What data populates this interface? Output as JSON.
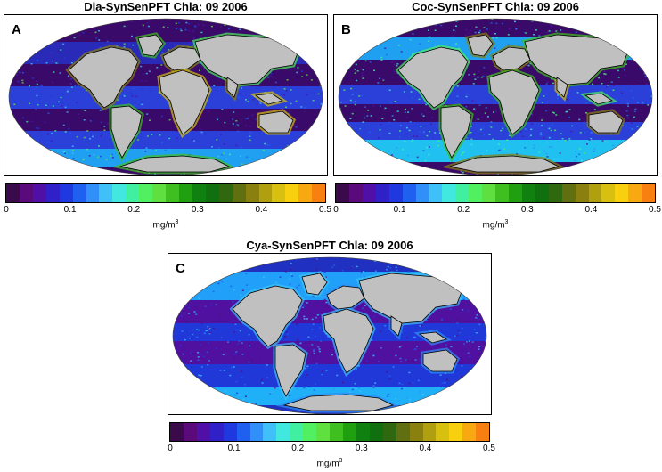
{
  "panels": [
    {
      "id": "A",
      "title": "Dia-SynSenPFT Chla: 09 2006",
      "letter": "A"
    },
    {
      "id": "B",
      "title": "Coc-SynSenPFT Chla: 09 2006",
      "letter": "B"
    },
    {
      "id": "C",
      "title": "Cya-SynSenPFT Chla: 09 2006",
      "letter": "C"
    }
  ],
  "colorbar": {
    "ticks": [
      "0",
      "0.1",
      "0.2",
      "0.3",
      "0.4",
      "0.5"
    ],
    "tick_values": [
      0,
      0.1,
      0.2,
      0.3,
      0.4,
      0.5
    ],
    "range": [
      0,
      0.5
    ],
    "unit_base": "mg/m",
    "unit_exp": "3",
    "colors": [
      "#3a0a4a",
      "#5a0a7a",
      "#5010a8",
      "#3020c8",
      "#2038e0",
      "#2060f0",
      "#3090f8",
      "#40c0f8",
      "#40e8e0",
      "#40f0a0",
      "#50f060",
      "#60e040",
      "#40c020",
      "#20a010",
      "#108010",
      "#107010",
      "#306810",
      "#607010",
      "#8a8010",
      "#b0a010",
      "#d8c010",
      "#f8d010",
      "#f8a810",
      "#f88010"
    ]
  },
  "map_style": {
    "land_color": "#c0c0c0",
    "coast_color": "#000000",
    "ocean_base_color": "#3a0a6a"
  }
}
